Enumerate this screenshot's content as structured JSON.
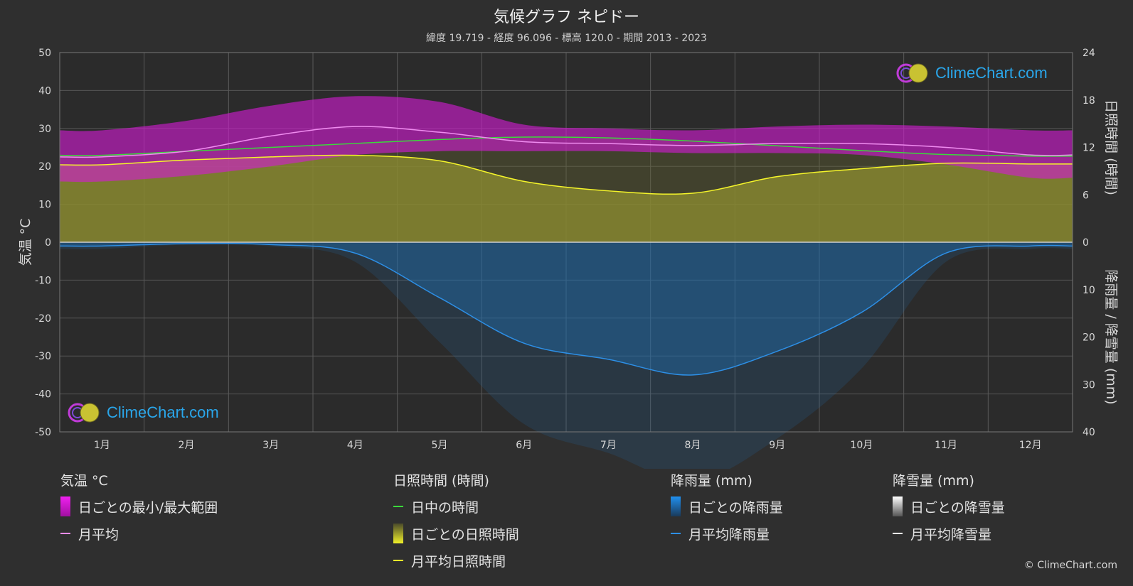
{
  "header": {
    "title": "気候グラフ ネピドー",
    "subtitle": "緯度 19.719 - 経度 96.096 - 標高 120.0 - 期間 2013 - 2023"
  },
  "logo": {
    "text": "ClimeChart.com"
  },
  "copyright": "© ClimeChart.com",
  "colors": {
    "background": "#2f2f2f",
    "temp_range": "#d21cd2",
    "temp_avg": "#f08cf0",
    "daylight": "#3bd93b",
    "sunshine_fill": "#a3a330",
    "sunshine_avg": "#f5f52a",
    "rain_fill": "#1f6fb0",
    "rain_avg": "#2d8fe6",
    "snow_avg": "#ffffff"
  },
  "legend": {
    "temperature": {
      "heading": "気温 °C",
      "range_label": "日ごとの最小/最大範囲",
      "avg_label": "月平均"
    },
    "sunshine": {
      "heading": "日照時間 (時間)",
      "daylight_label": "日中の時間",
      "daily_label": "日ごとの日照時間",
      "avg_label": "月平均日照時間"
    },
    "rain": {
      "heading": "降雨量 (mm)",
      "daily_label": "日ごとの降雨量",
      "avg_label": "月平均降雨量"
    },
    "snow": {
      "heading": "降雪量 (mm)",
      "daily_label": "日ごとの降雪量",
      "avg_label": "月平均降雪量"
    }
  },
  "chart_data": {
    "type": "line",
    "categories": [
      "1月",
      "2月",
      "3月",
      "4月",
      "5月",
      "6月",
      "7月",
      "8月",
      "9月",
      "10月",
      "11月",
      "12月"
    ],
    "ylabel": "気温 °C",
    "ylabel_right_top": "日照時間 (時間)",
    "ylabel_right_bottom": "降雨量 / 降雪量 (mm)",
    "ylim_left": [
      -50,
      50
    ],
    "left_ticks": [
      50,
      40,
      30,
      20,
      10,
      0,
      -10,
      -20,
      -30,
      -40,
      -50
    ],
    "right_top_ticks": [
      24,
      18,
      12,
      6,
      0
    ],
    "right_bottom_ticks": [
      10,
      20,
      30,
      40
    ],
    "ylim_sunshine_hours": [
      0,
      24
    ],
    "ylim_precip_mm": [
      0,
      40
    ],
    "grid": true,
    "series": [
      {
        "name": "月平均",
        "axis": "temperature",
        "values": [
          22.5,
          24.0,
          28.0,
          30.5,
          29.0,
          26.5,
          26.0,
          25.5,
          26.0,
          26.0,
          25.0,
          23.0
        ]
      },
      {
        "name": "日中の時間",
        "axis": "sunshine",
        "values": [
          11.0,
          11.5,
          12.0,
          12.5,
          13.0,
          13.3,
          13.2,
          12.8,
          12.2,
          11.6,
          11.1,
          10.9
        ]
      },
      {
        "name": "月平均日照時間",
        "axis": "sunshine",
        "values": [
          9.8,
          10.4,
          10.8,
          11.0,
          10.3,
          7.7,
          6.5,
          6.2,
          8.3,
          9.3,
          10.0,
          9.9
        ]
      },
      {
        "name": "月平均降雨量",
        "axis": "precipitation",
        "values": [
          0.8,
          0.3,
          0.5,
          2.3,
          11.7,
          21.3,
          24.7,
          28.0,
          23.0,
          14.8,
          2.3,
          0.8
        ]
      },
      {
        "name": "月平均降雪量",
        "axis": "precipitation",
        "values": [
          0,
          0,
          0,
          0,
          0,
          0,
          0,
          0,
          0,
          0,
          0,
          0
        ]
      }
    ],
    "temp_range": {
      "name": "日ごとの最小/最大範囲",
      "min": [
        16.0,
        17.5,
        20.0,
        23.0,
        24.0,
        24.0,
        24.0,
        23.5,
        23.5,
        23.0,
        20.5,
        17.0
      ],
      "max": [
        29.5,
        32.0,
        36.0,
        38.5,
        37.0,
        31.0,
        30.0,
        29.5,
        30.5,
        31.0,
        30.5,
        29.5
      ]
    }
  }
}
